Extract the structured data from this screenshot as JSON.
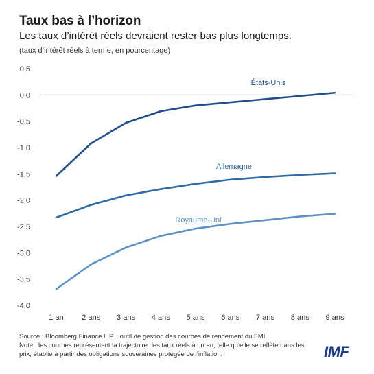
{
  "header": {
    "title": "Taux bas à l’horizon",
    "subtitle": "Les taux d’intérêt réels devraient rester bas plus longtemps.",
    "units": "(taux d’intérêt réels à terme, en pourcentage)"
  },
  "chart_data": {
    "type": "line",
    "categories": [
      "1 an",
      "2 ans",
      "3 ans",
      "4 ans",
      "5 ans",
      "6 ans",
      "7 ans",
      "8 ans",
      "9 ans"
    ],
    "ylim": [
      -4.0,
      0.5
    ],
    "yticks": [
      0.5,
      0.0,
      -0.5,
      -1.0,
      -1.5,
      -2.0,
      -2.5,
      -3.0,
      -3.5,
      -4.0
    ],
    "ytick_labels": [
      "0,5",
      "0,0",
      "-0,5",
      "-1,0",
      "-1,5",
      "-2,0",
      "-2,5",
      "-3,0",
      "-3,5",
      "-4,0"
    ],
    "series": [
      {
        "name": "États-Unis",
        "color": "#1f4e8c",
        "values": [
          -1.54,
          -0.92,
          -0.53,
          -0.31,
          -0.2,
          -0.14,
          -0.08,
          -0.02,
          0.04
        ]
      },
      {
        "name": "Allemagne",
        "color": "#2e6aa6",
        "values": [
          -2.33,
          -2.09,
          -1.91,
          -1.79,
          -1.69,
          -1.61,
          -1.56,
          -1.52,
          -1.49
        ]
      },
      {
        "name": "Royaume-Uni",
        "color": "#5b93c7",
        "values": [
          -3.69,
          -3.22,
          -2.9,
          -2.68,
          -2.54,
          -2.45,
          -2.38,
          -2.31,
          -2.26
        ]
      }
    ],
    "grid": false
  },
  "footer": {
    "source": "Source : Bloomberg Finance L.P. ; outil de gestion des courbes de rendement du FMI.",
    "note": "Note : les courbes représentent la trajectoire des taux réels à un an, telle qu’elle se reflète dans les prix, établie à partir des obligations souveraines protégée de l’inflation."
  },
  "logo": {
    "text": "IMF",
    "color": "#1a3a8a"
  }
}
